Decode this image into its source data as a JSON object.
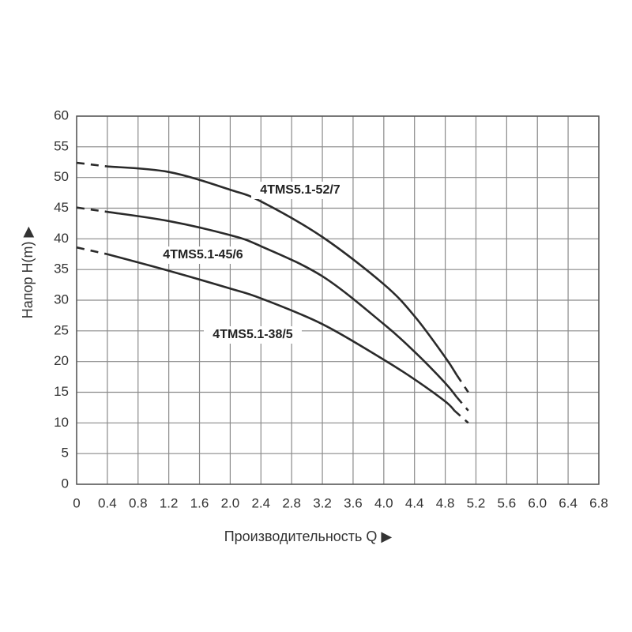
{
  "chart_data": {
    "type": "line",
    "x_label": "Производительность Q ▶",
    "y_label": "Напор H(m) ▶",
    "xlim": [
      0,
      6.8
    ],
    "xticks": [
      0,
      0.4,
      0.8,
      1.2,
      1.6,
      {
        "value": 2,
        "label": "2.0"
      },
      2.4,
      2.8,
      3.2,
      3.6,
      {
        "value": 4,
        "label": "4.0"
      },
      4.4,
      4.8,
      5.2,
      5.6,
      {
        "value": 6,
        "label": "6.0"
      },
      6.4,
      6.8
    ],
    "ylim": [
      0,
      60
    ],
    "yticks": [
      0,
      5,
      10,
      15,
      20,
      25,
      30,
      35,
      40,
      45,
      50,
      55,
      60
    ],
    "grid": true,
    "dashed_ends": true,
    "series": [
      {
        "name": "4TMS5.1-52/7",
        "color": "#2a2a2a",
        "x": [
          0,
          0.4,
          1.2,
          2.0,
          2.4,
          3.2,
          4.0,
          4.4,
          4.8,
          4.95,
          5.1
        ],
        "values": [
          52.4,
          51.8,
          50.9,
          48.0,
          46.1,
          40.3,
          32.6,
          27.4,
          20.7,
          17.8,
          15.0
        ]
      },
      {
        "name": "4TMS5.1-45/6",
        "color": "#2a2a2a",
        "x": [
          0,
          0.4,
          1.2,
          2.0,
          2.4,
          3.2,
          4.0,
          4.4,
          4.8,
          4.95,
          5.1
        ],
        "values": [
          45.1,
          44.4,
          42.9,
          40.6,
          38.8,
          33.9,
          26.1,
          21.6,
          16.5,
          14.2,
          12.0
        ]
      },
      {
        "name": "4TMS5.1-38/5",
        "color": "#2a2a2a",
        "x": [
          0,
          0.4,
          1.2,
          2.0,
          2.4,
          3.2,
          4.0,
          4.4,
          4.8,
          4.92,
          5.1
        ],
        "values": [
          38.6,
          37.5,
          34.8,
          31.9,
          30.3,
          26.1,
          20.3,
          17.1,
          13.5,
          12.0,
          10.0
        ]
      }
    ]
  }
}
